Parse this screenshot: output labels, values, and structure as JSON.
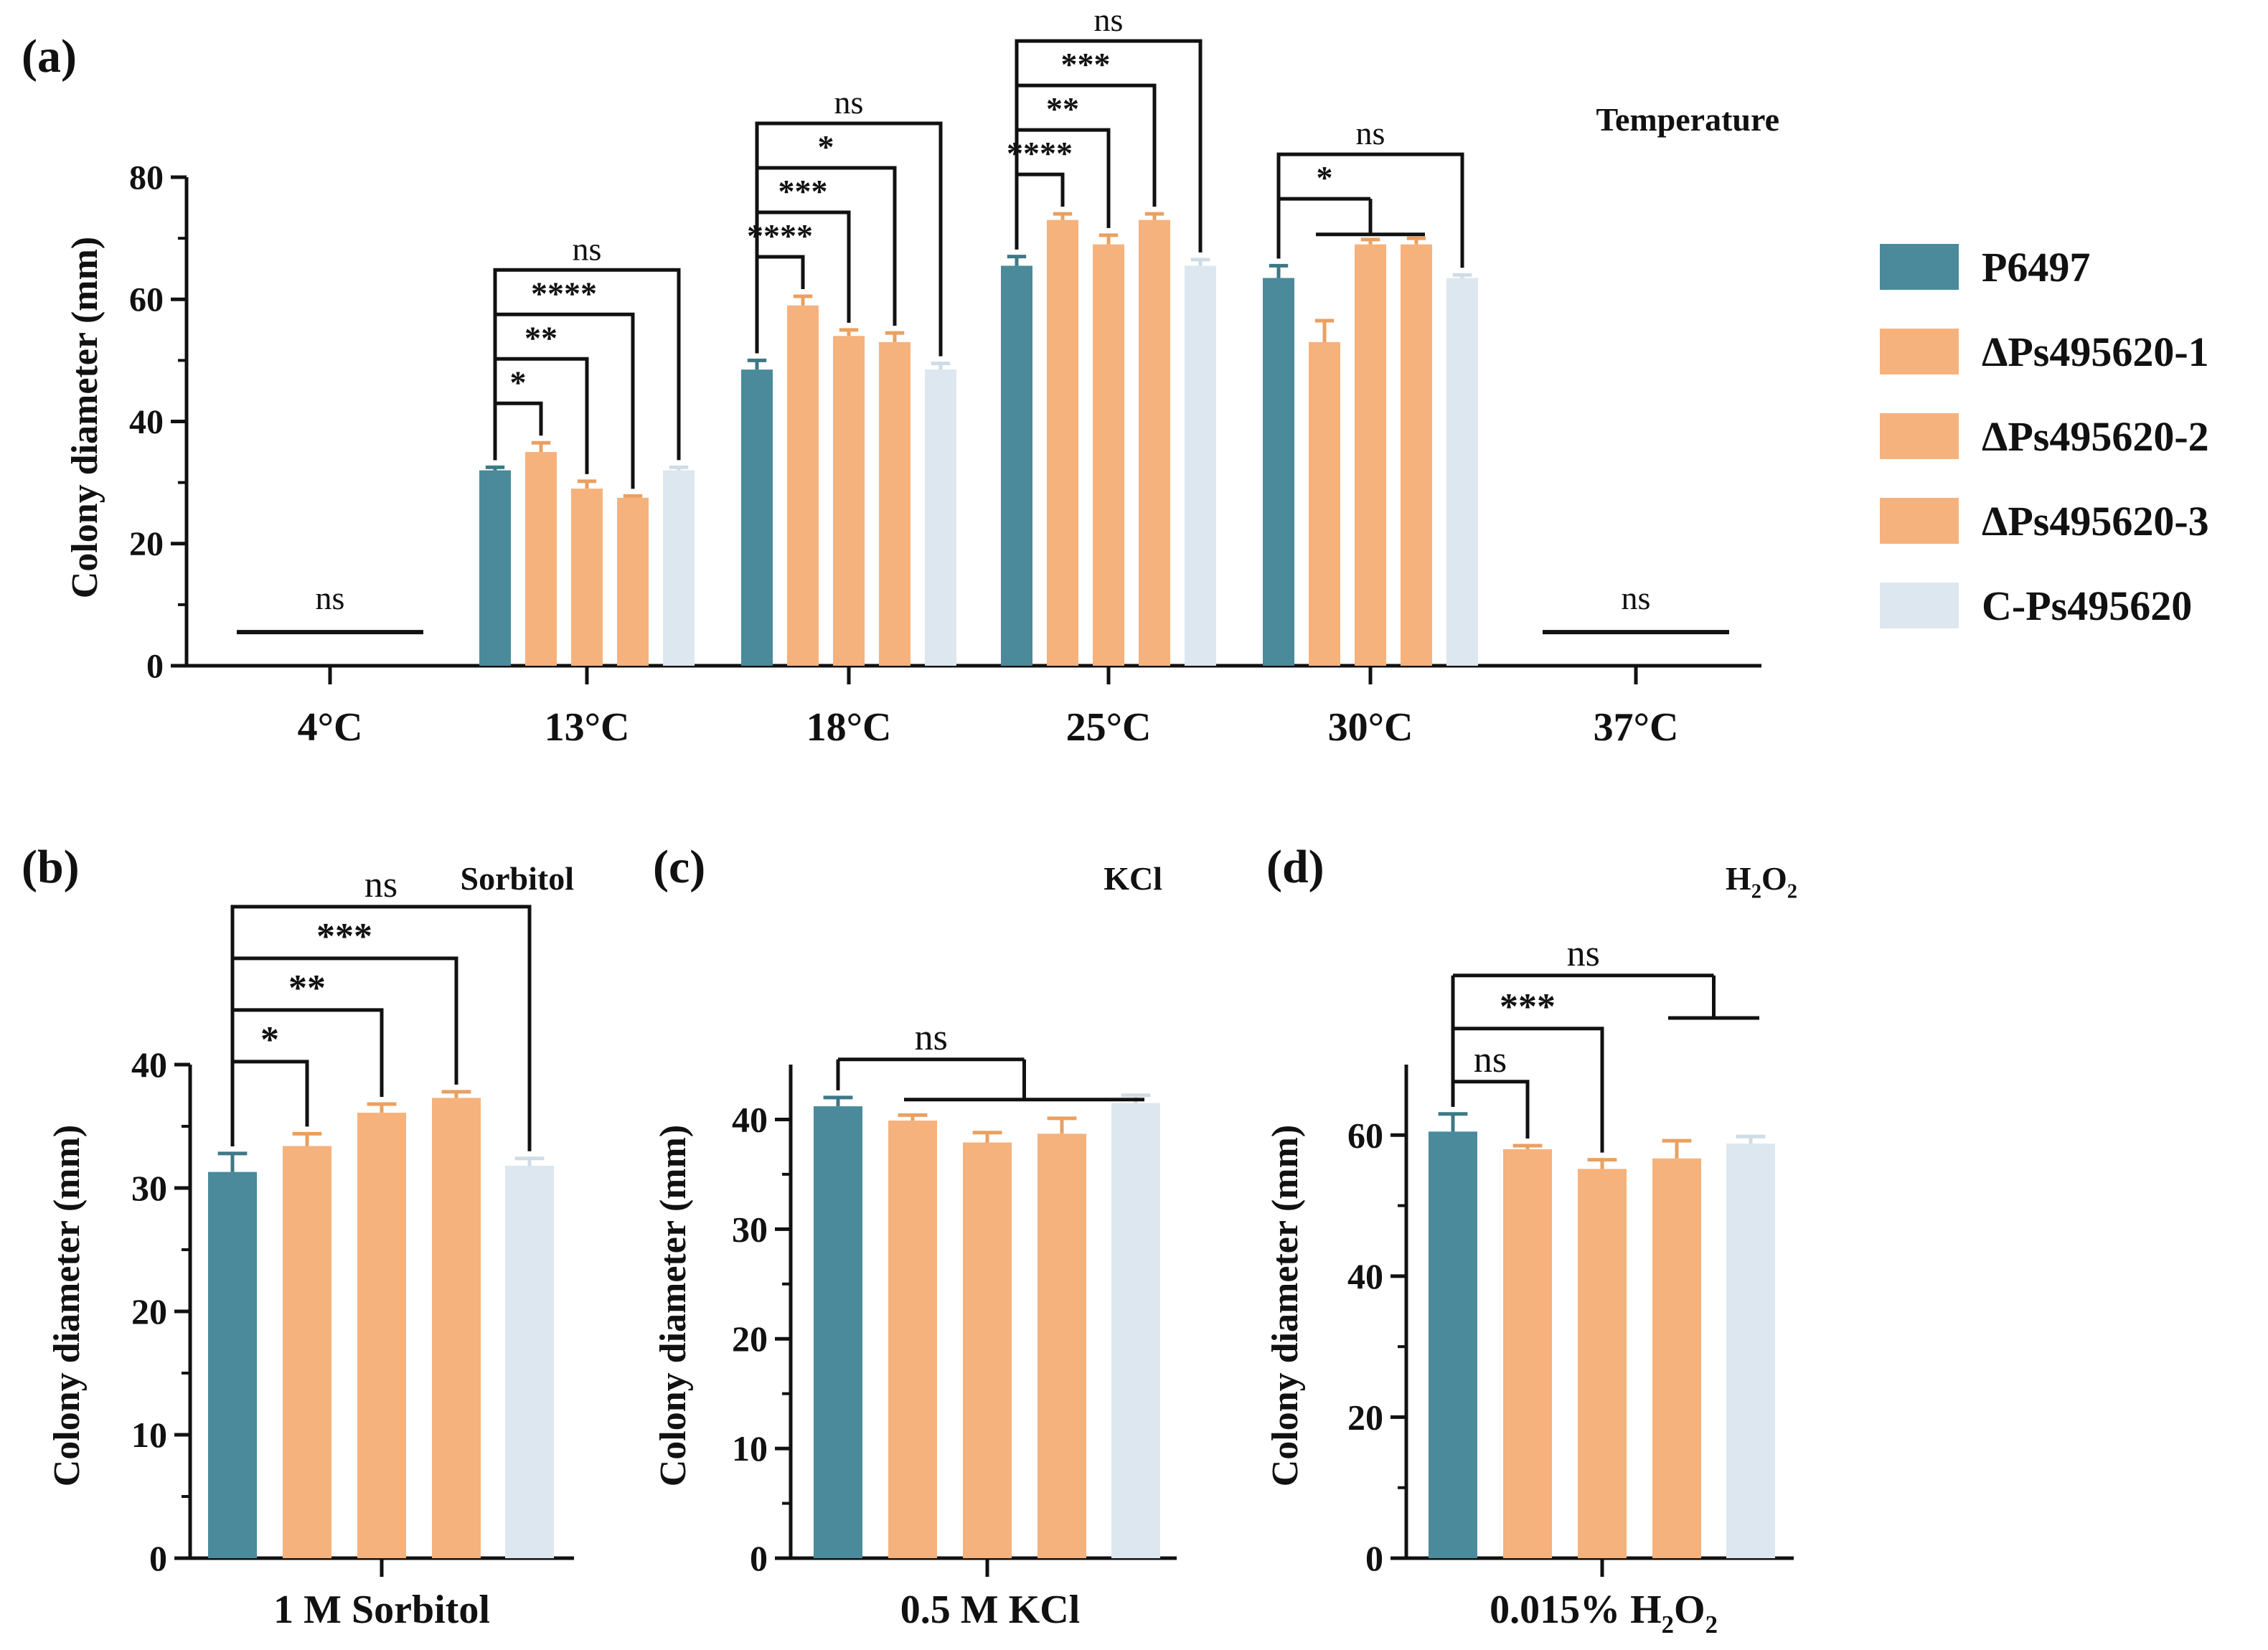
{
  "colors": {
    "axis": "#111111",
    "P6497": "#4a8a9a",
    "P6497_edge": "#3e7887",
    "mutant": "#f5b27d",
    "mutant_edge": "#eaa061",
    "complement": "#dde7ef",
    "complement_edge": "#cfdce6"
  },
  "legend": {
    "items": [
      {
        "label": "P6497",
        "color_key": "P6497"
      },
      {
        "label": "ΔPs495620-1",
        "color_key": "mutant"
      },
      {
        "label": "ΔPs495620-2",
        "color_key": "mutant"
      },
      {
        "label": "ΔPs495620-3",
        "color_key": "mutant"
      },
      {
        "label": "C-Ps495620",
        "color_key": "complement"
      }
    ]
  },
  "chart_data": [
    {
      "panel": "(a)",
      "type": "bar",
      "title": "Temperature",
      "ylabel": "Colony diameter (mm)",
      "xlabel": "",
      "ylim": [
        0,
        80
      ],
      "yticks": [
        0,
        20,
        40,
        60,
        80
      ],
      "grid": false,
      "legend_position": "right",
      "categories": [
        "4°C",
        "13°C",
        "18°C",
        "25°C",
        "30°C",
        "37°C"
      ],
      "series": [
        {
          "name": "P6497",
          "values": [
            0,
            32,
            48.5,
            65.5,
            63.5,
            0
          ],
          "errors": [
            0,
            0.5,
            1.5,
            1.5,
            2,
            0
          ]
        },
        {
          "name": "ΔPs495620-1",
          "values": [
            0,
            35,
            59,
            73,
            53,
            0
          ],
          "errors": [
            0,
            1.5,
            1.5,
            1,
            3.5,
            0
          ]
        },
        {
          "name": "ΔPs495620-2",
          "values": [
            0,
            29,
            54,
            69,
            69,
            0
          ],
          "errors": [
            0,
            1.2,
            1,
            1.5,
            0.8,
            0
          ]
        },
        {
          "name": "ΔPs495620-3",
          "values": [
            0,
            27.5,
            53,
            73,
            69,
            0
          ],
          "errors": [
            0,
            0.3,
            1.5,
            1,
            1,
            0
          ]
        },
        {
          "name": "C-Ps495620",
          "values": [
            0,
            32,
            48.5,
            65.5,
            63.5,
            0
          ],
          "errors": [
            0,
            0.5,
            1,
            1,
            0.5,
            0
          ]
        }
      ],
      "annotations": [
        {
          "group": 0,
          "from": 0,
          "to": 4,
          "label": "ns",
          "level": 0,
          "style": "flat",
          "y": 5.5
        },
        {
          "group": 5,
          "from": 0,
          "to": 4,
          "label": "ns",
          "level": 0,
          "style": "flat",
          "y": 5.5
        },
        {
          "group": 1,
          "from": 0,
          "to": 1,
          "label": "*",
          "level": 0
        },
        {
          "group": 1,
          "from": 0,
          "to": 2,
          "label": "**",
          "level": 1
        },
        {
          "group": 1,
          "from": 0,
          "to": 3,
          "label": "****",
          "level": 2
        },
        {
          "group": 1,
          "from": 0,
          "to": 4,
          "label": "ns",
          "level": 3
        },
        {
          "group": 2,
          "from": 0,
          "to": 1,
          "label": "****",
          "level": 0
        },
        {
          "group": 2,
          "from": 0,
          "to": 2,
          "label": "***",
          "level": 1
        },
        {
          "group": 2,
          "from": 0,
          "to": 3,
          "label": "*",
          "level": 2
        },
        {
          "group": 2,
          "from": 0,
          "to": 4,
          "label": "ns",
          "level": 3
        },
        {
          "group": 3,
          "from": 0,
          "to": 1,
          "label": "****",
          "level": 0
        },
        {
          "group": 3,
          "from": 0,
          "to": 2,
          "label": "**",
          "level": 1
        },
        {
          "group": 3,
          "from": 0,
          "to": 3,
          "label": "***",
          "level": 2
        },
        {
          "group": 3,
          "from": 0,
          "to": 4,
          "label": "ns",
          "level": 3
        },
        {
          "group": 4,
          "from": 0,
          "to": 1,
          "label": "*",
          "level": 0,
          "style": "to-group",
          "group_span": [
            1,
            3
          ]
        },
        {
          "group": 4,
          "from": 0,
          "to": 4,
          "label": "ns",
          "level": 1
        }
      ]
    },
    {
      "panel": "(b)",
      "type": "bar",
      "title": "Sorbitol",
      "ylabel": "Colony diameter (mm)",
      "xlabel": "1 M Sorbitol",
      "ylim": [
        0,
        40
      ],
      "yticks": [
        0,
        10,
        20,
        30,
        40
      ],
      "grid": false,
      "series": [
        {
          "name": "P6497",
          "values": [
            31.3
          ],
          "errors": [
            1.5
          ]
        },
        {
          "name": "ΔPs495620-1",
          "values": [
            33.4
          ],
          "errors": [
            1.0
          ]
        },
        {
          "name": "ΔPs495620-2",
          "values": [
            36.1
          ],
          "errors": [
            0.7
          ]
        },
        {
          "name": "ΔPs495620-3",
          "values": [
            37.3
          ],
          "errors": [
            0.5
          ]
        },
        {
          "name": "C-Ps495620",
          "values": [
            31.8
          ],
          "errors": [
            0.6
          ]
        }
      ],
      "annotations": [
        {
          "from": 0,
          "to": 1,
          "label": "*",
          "level": 0
        },
        {
          "from": 0,
          "to": 2,
          "label": "**",
          "level": 1
        },
        {
          "from": 0,
          "to": 3,
          "label": "***",
          "level": 2
        },
        {
          "from": 0,
          "to": 4,
          "label": "ns",
          "level": 3
        }
      ]
    },
    {
      "panel": "(c)",
      "type": "bar",
      "title": "KCl",
      "ylabel": "Colony diameter (mm)",
      "xlabel": "0.5 M KCl",
      "ylim": [
        0,
        45
      ],
      "yticks": [
        0,
        10,
        20,
        30,
        40
      ],
      "grid": false,
      "series": [
        {
          "name": "P6497",
          "values": [
            41.2
          ],
          "errors": [
            0.8
          ]
        },
        {
          "name": "ΔPs495620-1",
          "values": [
            39.9
          ],
          "errors": [
            0.5
          ]
        },
        {
          "name": "ΔPs495620-2",
          "values": [
            37.9
          ],
          "errors": [
            0.9
          ]
        },
        {
          "name": "ΔPs495620-3",
          "values": [
            38.7
          ],
          "errors": [
            1.4
          ]
        },
        {
          "name": "C-Ps495620",
          "values": [
            41.5
          ],
          "errors": [
            0.7
          ]
        }
      ],
      "annotations": [
        {
          "from": 0,
          "to": 1,
          "label": "ns",
          "level": 0,
          "style": "to-group",
          "group_span": [
            1,
            4
          ]
        }
      ]
    },
    {
      "panel": "(d)",
      "type": "bar",
      "title": "H2O2",
      "ylabel": "Colony diameter (mm)",
      "xlabel": "0.015% H2O2",
      "ylim": [
        0,
        70
      ],
      "yticks": [
        0,
        20,
        40,
        60
      ],
      "grid": false,
      "series": [
        {
          "name": "P6497",
          "values": [
            60.5
          ],
          "errors": [
            2.5
          ]
        },
        {
          "name": "ΔPs495620-1",
          "values": [
            58
          ],
          "errors": [
            0.5
          ]
        },
        {
          "name": "ΔPs495620-2",
          "values": [
            55.2
          ],
          "errors": [
            1.3
          ]
        },
        {
          "name": "ΔPs495620-3",
          "values": [
            56.7
          ],
          "errors": [
            2.5
          ]
        },
        {
          "name": "C-Ps495620",
          "values": [
            58.8
          ],
          "errors": [
            1.0
          ]
        }
      ],
      "annotations": [
        {
          "from": 0,
          "to": 1,
          "label": "ns",
          "level": 0
        },
        {
          "from": 0,
          "to": 2,
          "label": "***",
          "level": 1
        },
        {
          "from": 0,
          "to": 4,
          "label": "ns",
          "level": 2,
          "style": "to-group",
          "group_span": [
            3,
            4
          ]
        }
      ]
    }
  ]
}
